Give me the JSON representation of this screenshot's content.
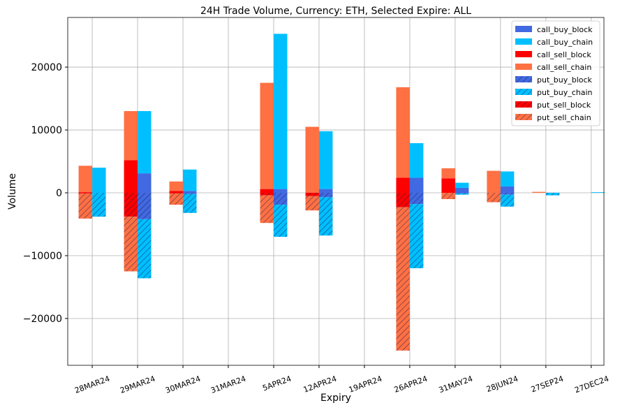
{
  "chart_data": {
    "type": "bar",
    "title": "24H Trade Volume, Currency: ETH, Selected Expire: ALL",
    "xlabel": "Expiry",
    "ylabel": "Volume",
    "ylim": [
      -27450,
      27900
    ],
    "yticks": [
      -20000,
      -10000,
      0,
      10000,
      20000
    ],
    "ytick_labels": [
      "−20000",
      "−10000",
      "0",
      "10000",
      "20000"
    ],
    "grid": true,
    "legend_position": "top-right",
    "categories": [
      "28MAR24",
      "29MAR24",
      "30MAR24",
      "31MAR24",
      "5APR24",
      "12APR24",
      "19APR24",
      "26APR24",
      "31MAY24",
      "28JUN24",
      "27SEP24",
      "27DEC24"
    ],
    "series": [
      {
        "name": "call_buy_block",
        "color": "#4169e1",
        "hatch": false,
        "side": "buy",
        "values": [
          0,
          3100,
          300,
          0,
          600,
          600,
          0,
          2400,
          800,
          1000,
          0,
          0
        ]
      },
      {
        "name": "call_buy_chain",
        "color": "#00bfff",
        "hatch": false,
        "side": "buy",
        "values": [
          4000,
          9900,
          3400,
          0,
          24700,
          9200,
          0,
          5500,
          800,
          2400,
          0,
          100
        ]
      },
      {
        "name": "call_sell_block",
        "color": "#ff0000",
        "hatch": false,
        "side": "sell",
        "values": [
          100,
          5200,
          300,
          0,
          600,
          0,
          0,
          2400,
          2300,
          0,
          0,
          0
        ]
      },
      {
        "name": "call_sell_chain",
        "color": "#ff7043",
        "hatch": false,
        "side": "sell",
        "values": [
          4200,
          7800,
          1500,
          0,
          16900,
          10500,
          0,
          14400,
          1600,
          3500,
          150,
          0
        ]
      },
      {
        "name": "put_buy_block",
        "color": "#4169e1",
        "hatch": true,
        "side": "buy",
        "values": [
          0,
          -4200,
          -200,
          0,
          -1900,
          -700,
          0,
          -1800,
          -100,
          -300,
          0,
          0
        ]
      },
      {
        "name": "put_buy_chain",
        "color": "#00bfff",
        "hatch": true,
        "side": "buy",
        "values": [
          -3800,
          -9400,
          -3000,
          0,
          -5100,
          -6100,
          0,
          -10200,
          -200,
          -1900,
          -400,
          0
        ]
      },
      {
        "name": "put_sell_block",
        "color": "#ff0000",
        "hatch": true,
        "side": "sell",
        "values": [
          -100,
          -3800,
          -100,
          0,
          -400,
          -500,
          0,
          -2300,
          0,
          0,
          0,
          0
        ]
      },
      {
        "name": "put_sell_chain",
        "color": "#ff7043",
        "hatch": true,
        "side": "sell",
        "values": [
          -4000,
          -8700,
          -1800,
          0,
          -4400,
          -2300,
          0,
          -22800,
          -1000,
          -1500,
          0,
          0
        ]
      }
    ]
  }
}
